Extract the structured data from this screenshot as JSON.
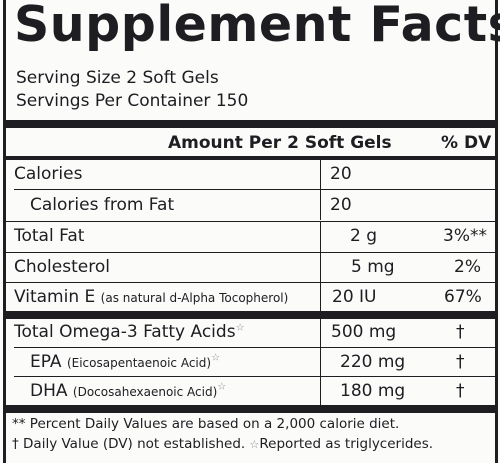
{
  "title": "Supplement Facts",
  "serving_size": "Serving Size 2 Soft Gels",
  "servings_per_container": "Servings Per Container 150",
  "header": {
    "amount": "Amount Per 2 Soft Gels",
    "dv": "% DV"
  },
  "rows": {
    "calories": {
      "label": "Calories",
      "amount": "20"
    },
    "calories_fat": {
      "label": "Calories from Fat",
      "amount": "20"
    },
    "total_fat": {
      "label": "Total Fat",
      "amount": "2 g",
      "dv": "3%**"
    },
    "cholesterol": {
      "label": "Cholesterol",
      "amount": "5 mg",
      "dv": "2%"
    },
    "vitamin_e": {
      "label": "Vitamin E",
      "note": "(as natural d-Alpha Tocopherol)",
      "amount": "20 IU",
      "dv": "67%"
    },
    "omega3": {
      "label": "Total Omega-3 Fatty Acids",
      "amount": "500 mg",
      "dv": "†"
    },
    "epa": {
      "label": "EPA",
      "note": "(Eicosapentaenoic Acid)",
      "amount": "220 mg",
      "dv": "†"
    },
    "dha": {
      "label": "DHA",
      "note": "(Docosahexaenoic Acid)",
      "amount": "180 mg",
      "dv": "†"
    }
  },
  "star_symbol": "☆",
  "footnotes": {
    "line1": "** Percent Daily Values are based on a 2,000 calorie diet.",
    "line2": "† Daily Value (DV) not established.",
    "line2b": "Reported as triglycerides."
  }
}
